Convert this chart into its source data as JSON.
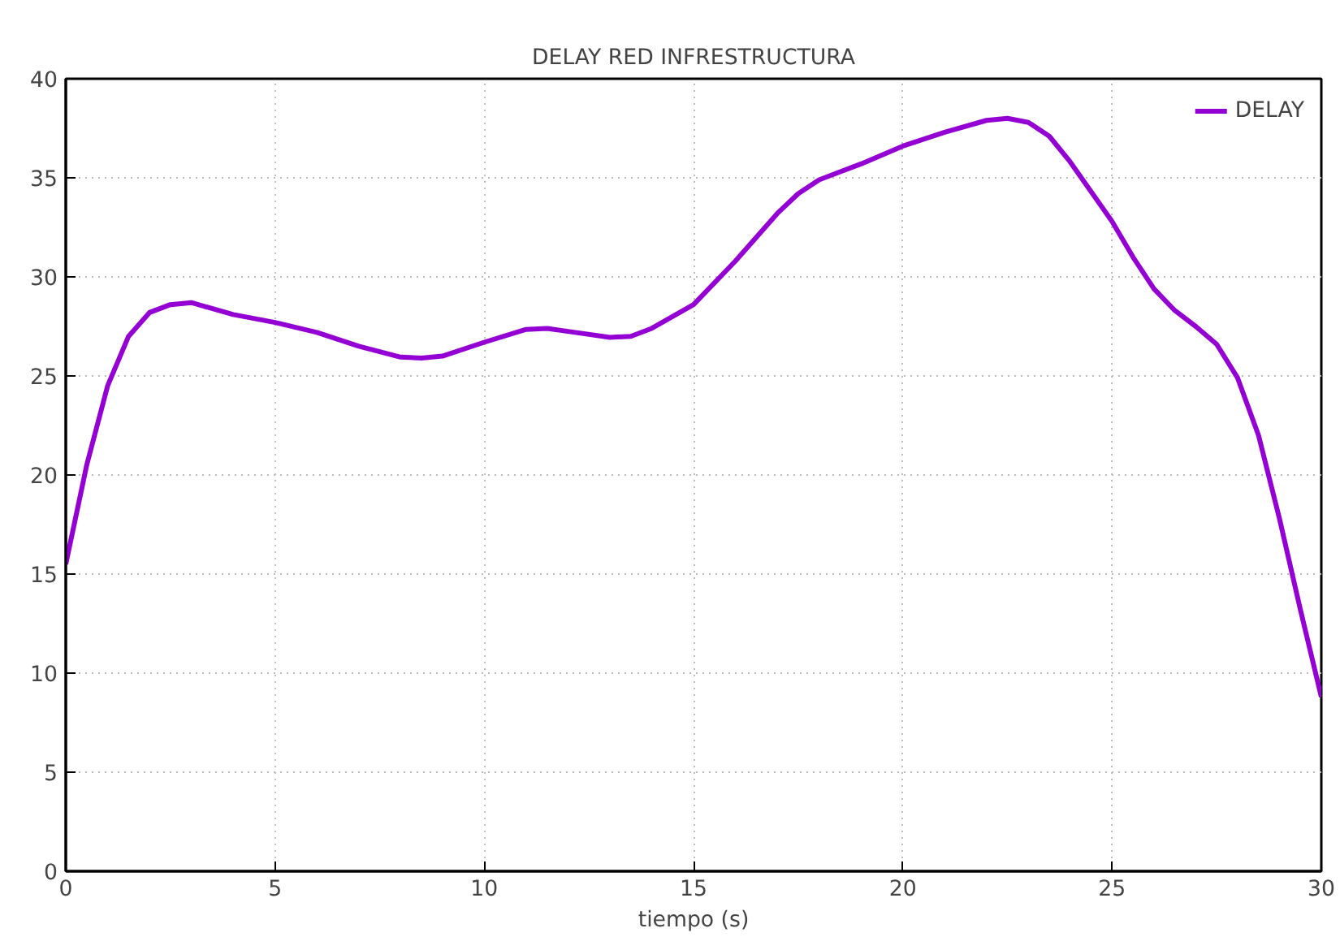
{
  "chart_data": {
    "type": "line",
    "title": "DELAY RED INFRESTRUCTURA",
    "xlabel": "tiempo (s)",
    "xlim": [
      0,
      30
    ],
    "xticks": [
      0,
      5,
      10,
      15,
      20,
      25,
      30
    ],
    "ylim": [
      0,
      40
    ],
    "yticks": [
      0,
      5,
      10,
      15,
      20,
      25,
      30,
      35,
      40
    ],
    "grid": true,
    "legend": "top right",
    "line_style": "solid",
    "series": [
      {
        "name": "DELAY",
        "color": "#9400d3",
        "x": [
          0,
          0.5,
          1,
          1.5,
          2,
          2.5,
          3,
          4,
          5,
          6,
          7,
          8,
          8.5,
          9,
          10,
          11,
          11.5,
          12,
          13,
          13.5,
          14,
          15,
          16,
          17,
          17.5,
          18,
          19,
          20,
          21,
          22,
          22.5,
          23,
          23.5,
          24,
          25,
          25.5,
          26,
          26.5,
          27,
          27.5,
          28,
          28.5,
          29,
          29.5,
          30
        ],
        "values": [
          15.5,
          20.5,
          24.5,
          27,
          28.2,
          28.6,
          28.7,
          28.1,
          27.7,
          27.2,
          26.5,
          25.95,
          25.9,
          26,
          26.7,
          27.35,
          27.4,
          27.25,
          26.95,
          27,
          27.4,
          28.6,
          30.8,
          33.2,
          34.2,
          34.9,
          35.7,
          36.6,
          37.3,
          37.9,
          38,
          37.8,
          37.1,
          35.8,
          32.8,
          31,
          29.4,
          28.3,
          27.5,
          26.6,
          24.9,
          22,
          17.8,
          13.2,
          8.8
        ]
      }
    ]
  }
}
